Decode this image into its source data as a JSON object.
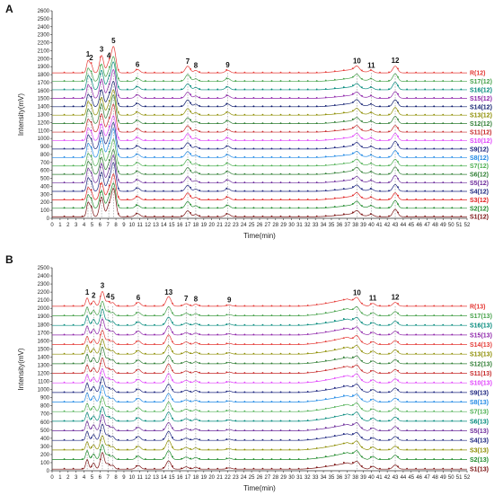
{
  "panels": [
    {
      "letter": "A",
      "chart_data": {
        "type": "line",
        "xlabel": "Time(min)",
        "ylabel": "Intensity(mV)",
        "xlim": [
          0,
          52
        ],
        "ylim": [
          0,
          2600
        ],
        "x_ticks": [
          0,
          1,
          2,
          3,
          4,
          5,
          6,
          7,
          8,
          9,
          10,
          11,
          12,
          13,
          14,
          15,
          16,
          17,
          18,
          19,
          20,
          21,
          22,
          23,
          24,
          25,
          26,
          27,
          28,
          29,
          30,
          31,
          32,
          33,
          34,
          35,
          36,
          37,
          38,
          39,
          40,
          41,
          42,
          43,
          44,
          45,
          46,
          47,
          48,
          49,
          50,
          51,
          52
        ],
        "y_ticks": [
          0,
          100,
          200,
          300,
          400,
          500,
          600,
          700,
          800,
          900,
          1000,
          1100,
          1200,
          1300,
          1400,
          1500,
          1600,
          1700,
          1800,
          1900,
          2000,
          2100,
          2200,
          2300,
          2400,
          2500,
          2600
        ],
        "series_offset_step": 106,
        "peak_labels": [
          {
            "label": "1",
            "time": 4.5
          },
          {
            "label": "2",
            "time": 4.9
          },
          {
            "label": "3",
            "time": 6.2
          },
          {
            "label": "4",
            "time": 7.1
          },
          {
            "label": "5",
            "time": 7.7
          },
          {
            "label": "6",
            "time": 10.7
          },
          {
            "label": "7",
            "time": 17.0
          },
          {
            "label": "8",
            "time": 18.0
          },
          {
            "label": "9",
            "time": 22.0
          },
          {
            "label": "10",
            "time": 38.2
          },
          {
            "label": "11",
            "time": 40.0
          },
          {
            "label": "12",
            "time": 43.0
          }
        ],
        "peaks": [
          {
            "t": 4.5,
            "h": 160,
            "w": 0.18
          },
          {
            "t": 4.9,
            "h": 110,
            "w": 0.18
          },
          {
            "t": 6.2,
            "h": 230,
            "w": 0.25
          },
          {
            "t": 7.1,
            "h": 120,
            "w": 0.25
          },
          {
            "t": 7.7,
            "h": 330,
            "w": 0.28
          },
          {
            "t": 10.7,
            "h": 40,
            "w": 0.3
          },
          {
            "t": 17.0,
            "h": 80,
            "w": 0.3
          },
          {
            "t": 18.0,
            "h": 30,
            "w": 0.25
          },
          {
            "t": 22.0,
            "h": 35,
            "w": 0.3
          },
          {
            "t": 38.2,
            "h": 55,
            "w": 0.3
          },
          {
            "t": 40.0,
            "h": 30,
            "w": 0.3
          },
          {
            "t": 43.0,
            "h": 90,
            "w": 0.3
          }
        ],
        "hump": {
          "start": 33,
          "peak": 37.5,
          "end": 40,
          "h": 40
        },
        "series": [
          {
            "name": "S1(12)",
            "color": "#7a1010"
          },
          {
            "name": "S2(12)",
            "color": "#1e8a2a"
          },
          {
            "name": "S3(12)",
            "color": "#e02020"
          },
          {
            "name": "S4(12)",
            "color": "#1a237e"
          },
          {
            "name": "S5(12)",
            "color": "#6b2a9a"
          },
          {
            "name": "S6(12)",
            "color": "#2e7d32"
          },
          {
            "name": "S7(12)",
            "color": "#4caf50"
          },
          {
            "name": "S8(12)",
            "color": "#1e88e5"
          },
          {
            "name": "S9(12)",
            "color": "#1a237e"
          },
          {
            "name": "S10(12)",
            "color": "#e040fb"
          },
          {
            "name": "S11(12)",
            "color": "#c62828"
          },
          {
            "name": "S12(12)",
            "color": "#2e7d32"
          },
          {
            "name": "S13(12)",
            "color": "#8d8d00"
          },
          {
            "name": "S14(12)",
            "color": "#0d1b6e"
          },
          {
            "name": "S15(12)",
            "color": "#8e24aa"
          },
          {
            "name": "S16(12)",
            "color": "#00897b"
          },
          {
            "name": "S17(12)",
            "color": "#43a047"
          },
          {
            "name": "R(12)",
            "color": "#e53935"
          }
        ]
      }
    },
    {
      "letter": "B",
      "chart_data": {
        "type": "line",
        "xlabel": "Time(min)",
        "ylabel": "Intensity(mV)",
        "xlim": [
          0,
          52
        ],
        "ylim": [
          0,
          2500
        ],
        "x_ticks": [
          0,
          1,
          2,
          3,
          4,
          5,
          6,
          7,
          8,
          9,
          10,
          11,
          12,
          13,
          14,
          15,
          16,
          17,
          18,
          19,
          20,
          21,
          22,
          23,
          24,
          25,
          26,
          27,
          28,
          29,
          30,
          31,
          32,
          33,
          34,
          35,
          36,
          37,
          38,
          39,
          40,
          41,
          42,
          43,
          44,
          45,
          46,
          47,
          48,
          49,
          50,
          51,
          52
        ],
        "y_ticks": [
          0,
          100,
          200,
          300,
          400,
          500,
          600,
          700,
          800,
          900,
          1000,
          1100,
          1200,
          1300,
          1400,
          1500,
          1600,
          1700,
          1800,
          1900,
          2000,
          2100,
          2200,
          2300,
          2400,
          2500
        ],
        "series_offset_step": 118,
        "peak_labels": [
          {
            "label": "1",
            "time": 4.4
          },
          {
            "label": "2",
            "time": 5.2
          },
          {
            "label": "3",
            "time": 6.3
          },
          {
            "label": "4",
            "time": 7.0
          },
          {
            "label": "5",
            "time": 7.6
          },
          {
            "label": "6",
            "time": 10.8
          },
          {
            "label": "13",
            "time": 14.6
          },
          {
            "label": "7",
            "time": 16.8
          },
          {
            "label": "8",
            "time": 18.0
          },
          {
            "label": "9",
            "time": 22.2
          },
          {
            "label": "10",
            "time": 38.2
          },
          {
            "label": "11",
            "time": 40.2
          },
          {
            "label": "12",
            "time": 43.0
          }
        ],
        "peaks": [
          {
            "t": 4.4,
            "h": 110,
            "w": 0.18
          },
          {
            "t": 5.2,
            "h": 70,
            "w": 0.2
          },
          {
            "t": 6.3,
            "h": 190,
            "w": 0.25
          },
          {
            "t": 7.0,
            "h": 60,
            "w": 0.22
          },
          {
            "t": 7.6,
            "h": 45,
            "w": 0.22
          },
          {
            "t": 10.8,
            "h": 45,
            "w": 0.3
          },
          {
            "t": 14.6,
            "h": 110,
            "w": 0.3
          },
          {
            "t": 16.8,
            "h": 30,
            "w": 0.3
          },
          {
            "t": 18.0,
            "h": 25,
            "w": 0.25
          },
          {
            "t": 22.2,
            "h": 15,
            "w": 0.3
          },
          {
            "t": 38.2,
            "h": 60,
            "w": 0.3
          },
          {
            "t": 40.2,
            "h": 35,
            "w": 0.3
          },
          {
            "t": 43.0,
            "h": 50,
            "w": 0.3
          }
        ],
        "hump": {
          "start": 31,
          "peak": 37,
          "end": 39.5,
          "h": 85
        },
        "series": [
          {
            "name": "S1(13)",
            "color": "#7a1010"
          },
          {
            "name": "S2(13)",
            "color": "#1e8a2a"
          },
          {
            "name": "S3(13)",
            "color": "#8d8d00"
          },
          {
            "name": "S4(13)",
            "color": "#1a237e"
          },
          {
            "name": "S5(13)",
            "color": "#6b2a9a"
          },
          {
            "name": "S6(13)",
            "color": "#00897b"
          },
          {
            "name": "S7(13)",
            "color": "#4caf50"
          },
          {
            "name": "S8(13)",
            "color": "#1e88e5"
          },
          {
            "name": "S9(13)",
            "color": "#1a237e"
          },
          {
            "name": "S10(13)",
            "color": "#e040fb"
          },
          {
            "name": "S11(13)",
            "color": "#c62828"
          },
          {
            "name": "S12(13)",
            "color": "#2e7d32"
          },
          {
            "name": "S13(13)",
            "color": "#8d8d00"
          },
          {
            "name": "S14(13)",
            "color": "#e53935"
          },
          {
            "name": "S15(13)",
            "color": "#8e24aa"
          },
          {
            "name": "S16(13)",
            "color": "#00897b"
          },
          {
            "name": "S17(13)",
            "color": "#43a047"
          },
          {
            "name": "R(13)",
            "color": "#e53935"
          }
        ]
      }
    }
  ]
}
